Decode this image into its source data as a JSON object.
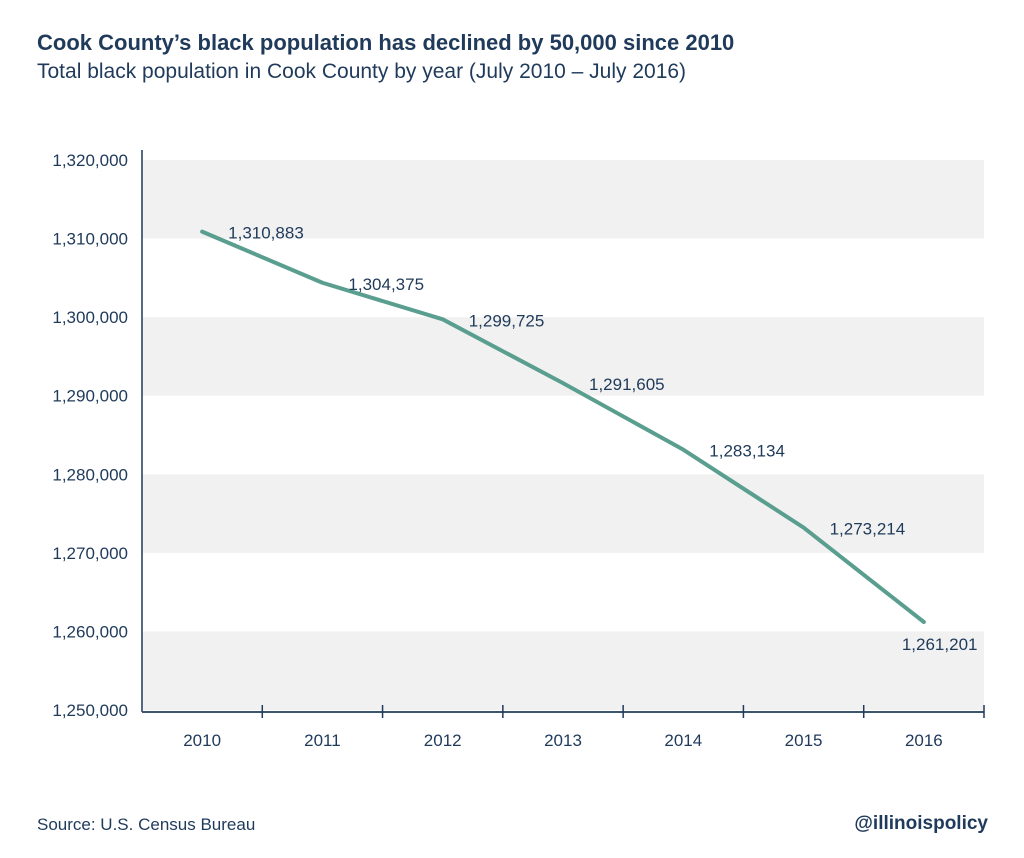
{
  "header": {
    "title": "Cook County’s black population has declined by 50,000 since 2010",
    "subtitle": "Total black population in Cook County by year (July 2010 – July 2016)"
  },
  "footer": {
    "source": "Source: U.S. Census Bureau",
    "handle": "@illinoispolicy"
  },
  "chart_data": {
    "type": "line",
    "title": "Cook County’s black population has declined by 50,000 since 2010",
    "subtitle": "Total black population in Cook County by year (July 2010 – July 2016)",
    "xlabel": "",
    "ylabel": "",
    "categories": [
      "2010",
      "2011",
      "2012",
      "2013",
      "2014",
      "2015",
      "2016"
    ],
    "values": [
      1310883,
      1304375,
      1299725,
      1291605,
      1283134,
      1273214,
      1261201
    ],
    "data_labels": [
      "1,310,883",
      "1,304,375",
      "1,299,725",
      "1,291,605",
      "1,283,134",
      "1,273,214",
      "1,261,201"
    ],
    "ylim": [
      1250000,
      1320000
    ],
    "yticks": [
      1250000,
      1260000,
      1270000,
      1280000,
      1290000,
      1300000,
      1310000,
      1320000
    ],
    "ytick_labels": [
      "1,250,000",
      "1,260,000",
      "1,270,000",
      "1,280,000",
      "1,290,000",
      "1,300,000",
      "1,310,000",
      "1,320,000"
    ],
    "grid": "alternating horizontal bands",
    "legend": "none",
    "colors": {
      "line": "#5a9e8f",
      "band": "#f1f1f1",
      "axis": "#1f3a5a",
      "text": "#1f3a5a"
    }
  }
}
